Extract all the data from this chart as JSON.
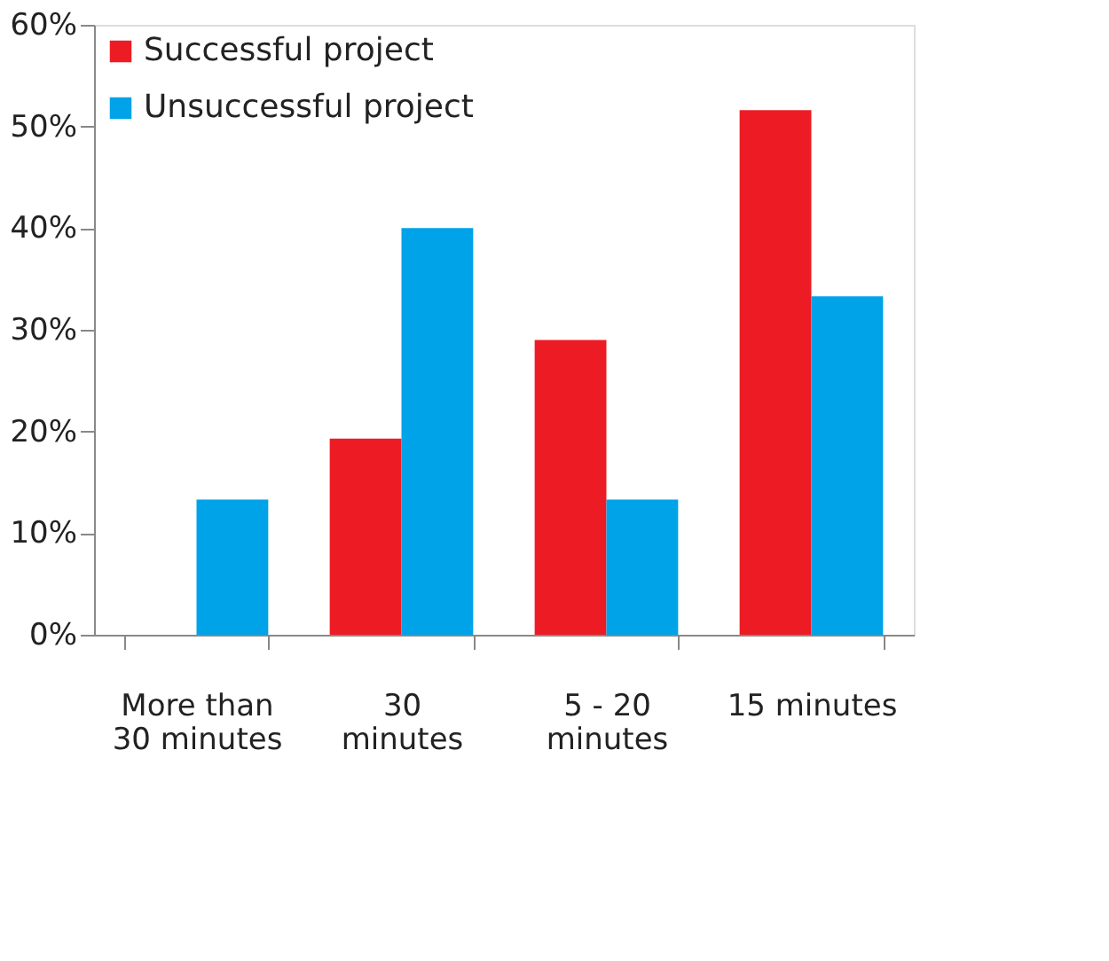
{
  "chart_data": {
    "type": "bar",
    "categories": [
      "More than 30 minutes",
      "30  minutes",
      "5 - 20 minutes",
      "15 minutes"
    ],
    "series": [
      {
        "name": "Successful project",
        "color": "#ed1c24",
        "values": [
          null,
          19.3,
          29.0,
          51.6
        ]
      },
      {
        "name": "Unsuccessful project",
        "color": "#00a2e8",
        "values": [
          13.3,
          40.0,
          13.3,
          33.3
        ]
      }
    ],
    "ylim": [
      0,
      60
    ],
    "yticks": [
      {
        "value": 0,
        "label": "0%"
      },
      {
        "value": 10,
        "label": "10%"
      },
      {
        "value": 20,
        "label": "20%"
      },
      {
        "value": 30,
        "label": "30%"
      },
      {
        "value": 40,
        "label": "40%"
      },
      {
        "value": 50,
        "label": "50%"
      },
      {
        "value": 60,
        "label": "60%"
      }
    ],
    "grid": false,
    "legend": "top left"
  }
}
